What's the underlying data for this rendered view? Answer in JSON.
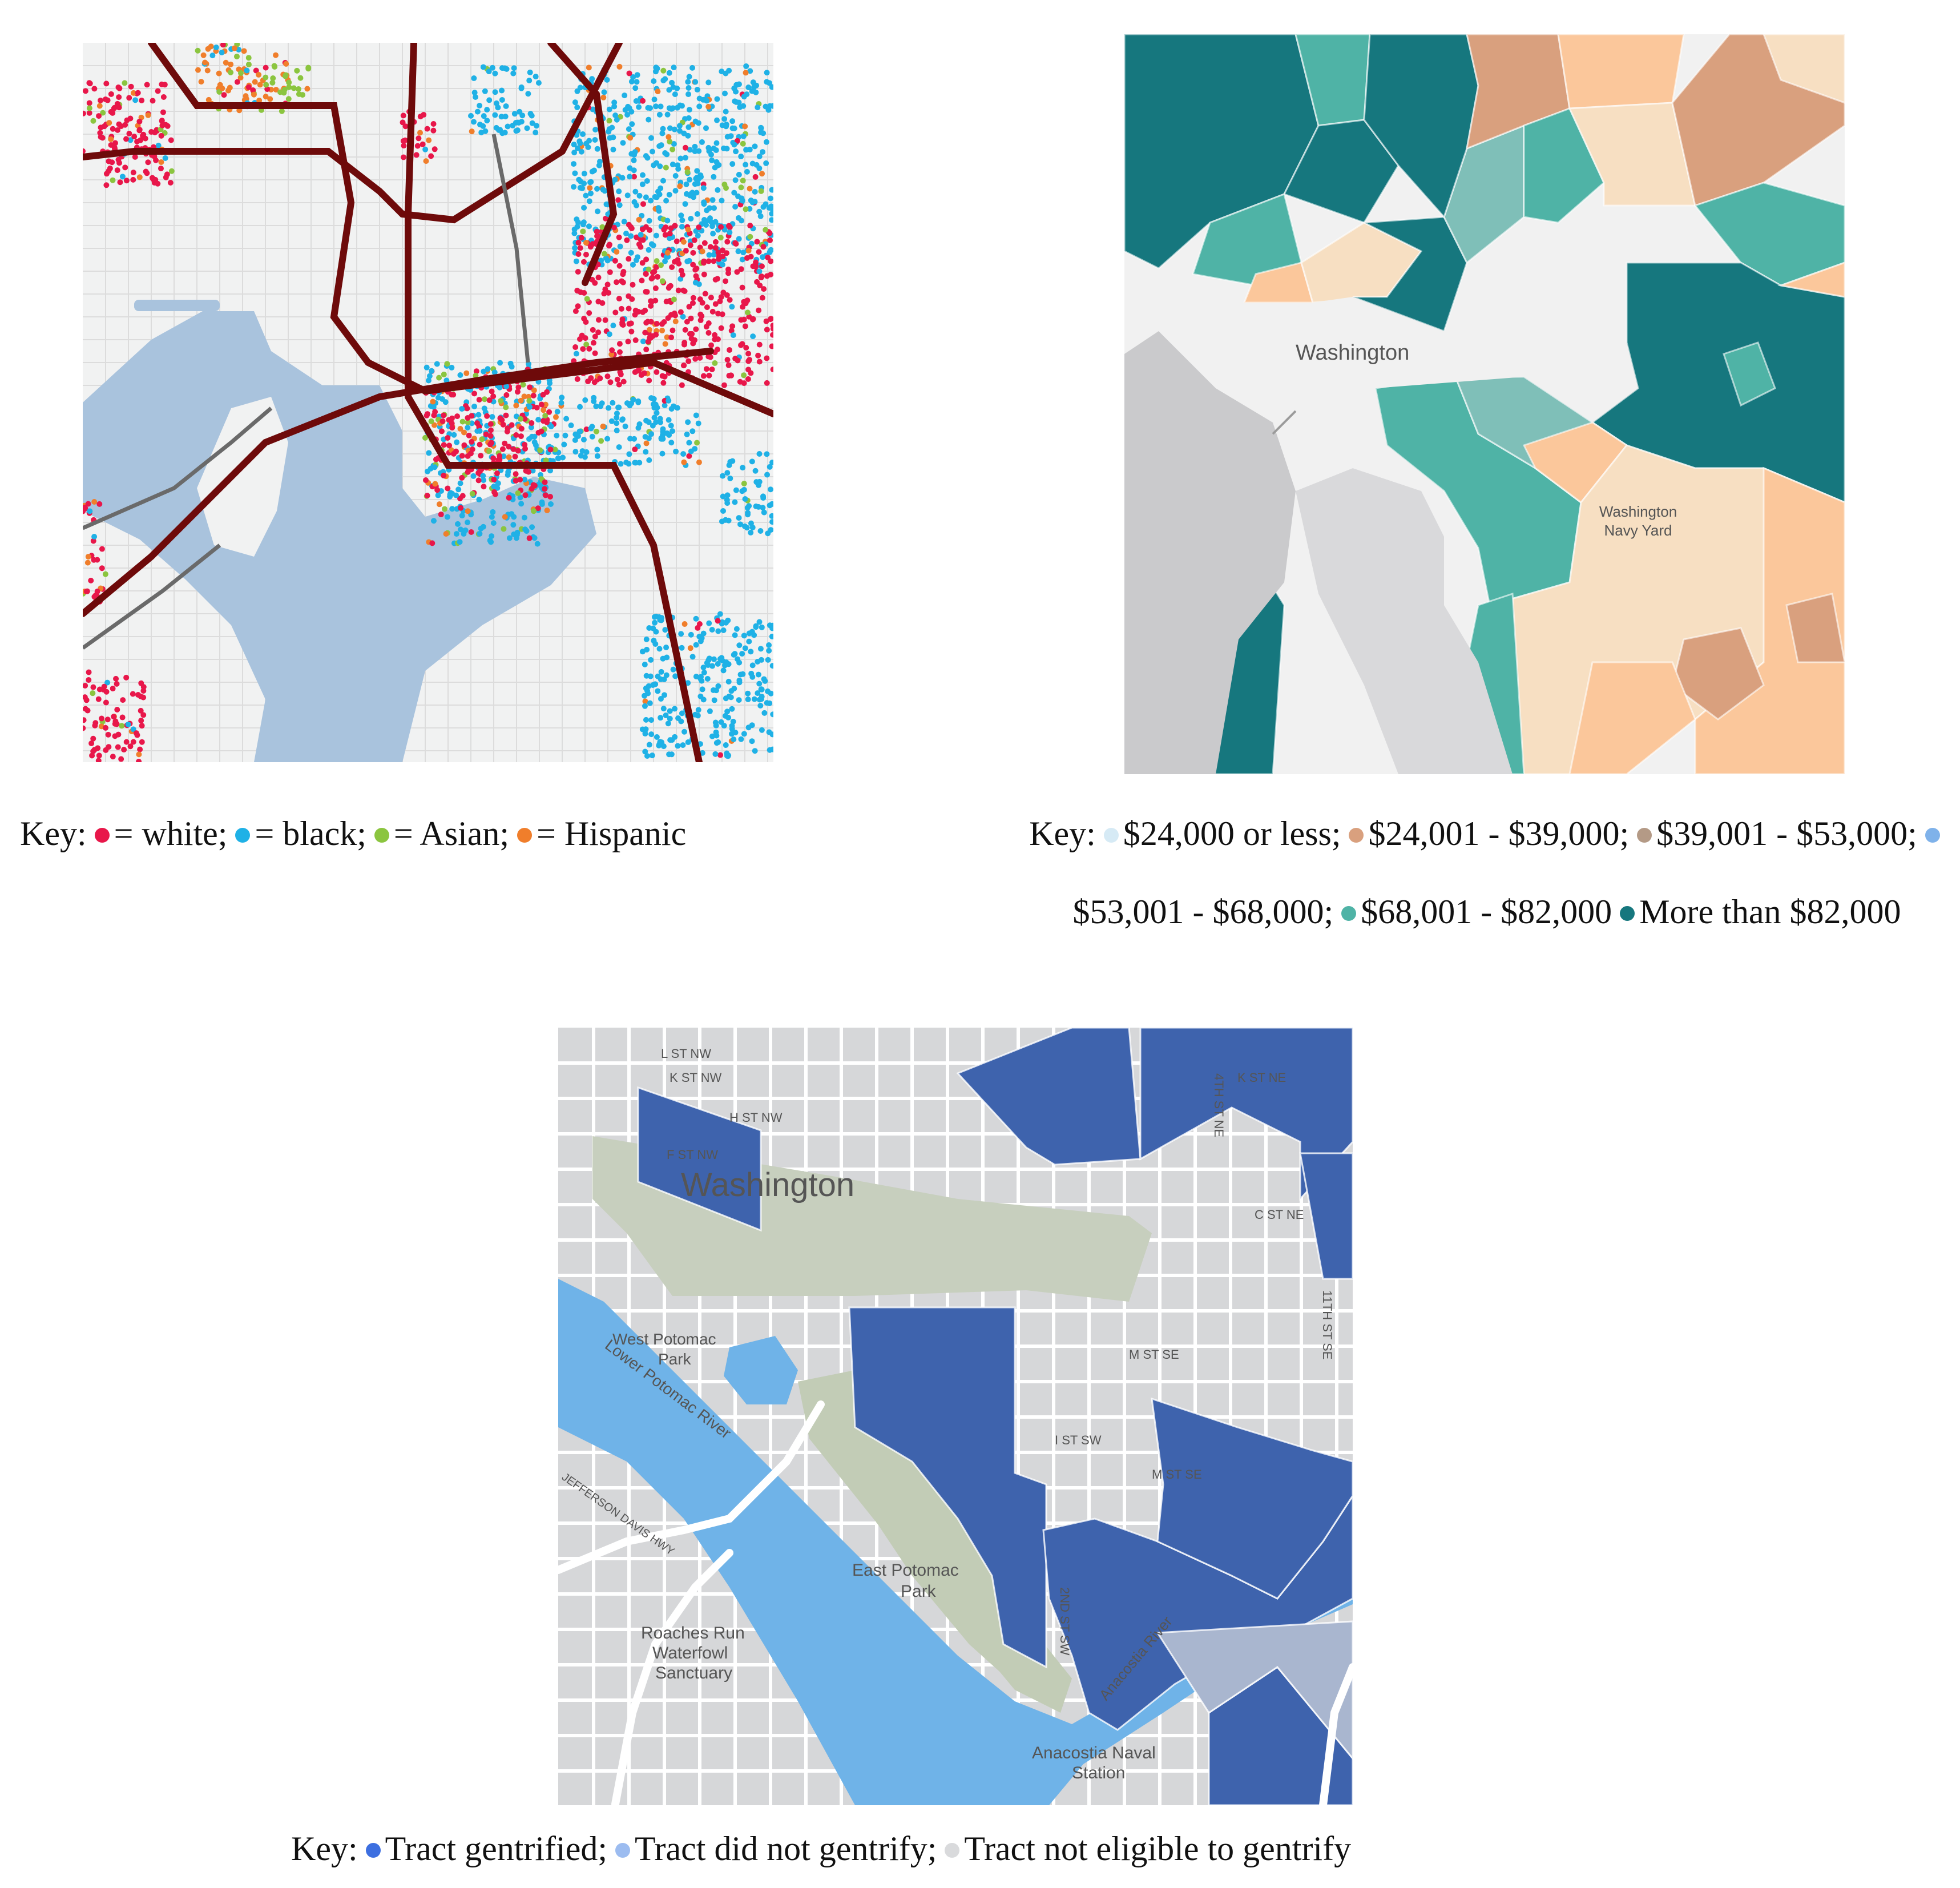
{
  "maps": {
    "race": {
      "key_prefix": "Key:",
      "legend": [
        {
          "label": "= white;",
          "color": "#e8174a"
        },
        {
          "label": "= black;",
          "color": "#1fb1e6"
        },
        {
          "label": "= Asian;",
          "color": "#8bc53f"
        },
        {
          "label": "= Hispanic",
          "color": "#f07e2b"
        }
      ]
    },
    "income": {
      "place_label": "Washington",
      "navy_yard_line1": "Washington",
      "navy_yard_line2": "Navy Yard",
      "key_prefix": "Key:",
      "legend": [
        {
          "label": "$24,000 or less;",
          "color": "#d6eaf5"
        },
        {
          "label": "$24,001 - $39,000;",
          "color": "#d9a07e"
        },
        {
          "label": "$39,001 - $53,000;",
          "color": "#b49a86"
        },
        {
          "label": "$53,001 - $68,000;",
          "color": "#7fb2ea"
        },
        {
          "label": "$68,001 - $82,000",
          "color": "#4fb3a6"
        },
        {
          "label": "More than $82,000",
          "color": "#16777e"
        }
      ]
    },
    "gentrify": {
      "labels": {
        "washington": "Washington",
        "west_potomac": "West Potomac",
        "park": "Park",
        "east_potomac": "East Potomac",
        "east_park": "Park",
        "lower_potomac": "Lower Potomac River",
        "anacostia_river": "Anacostia River",
        "roaches1": "Roaches Run",
        "roaches2": "Waterfowl",
        "roaches3": "Sanctuary",
        "anacostia_naval1": "Anacostia Naval",
        "anacostia_naval2": "Station",
        "l_st": "L ST NW",
        "k_st": "K ST NW",
        "h_st": "H ST NW",
        "f_st": "F ST NW",
        "m_st": "M ST SE",
        "i_st": "I ST SW",
        "c_st": "C ST NE",
        "k_st_ne": "K ST NE",
        "davis_hwy": "JEFFERSON DAVIS HWY",
        "second_st": "2ND ST SW",
        "fourth_st": "4TH ST NE",
        "eleventh": "11TH ST SE"
      },
      "key_prefix": "Key:",
      "legend": [
        {
          "label": "Tract gentrified;",
          "color": "#3d6fe0"
        },
        {
          "label": "Tract did not gentrify;",
          "color": "#9cbcf0"
        },
        {
          "label": "Tract not eligible to gentrify",
          "color": "#d9dadc"
        }
      ]
    }
  }
}
